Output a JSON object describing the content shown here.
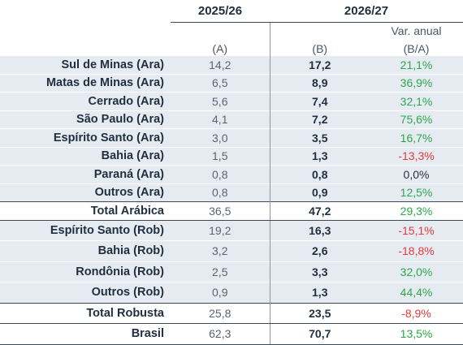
{
  "header": {
    "year_a": "2025/26",
    "year_b": "2026/27",
    "var_label": "Var. anual",
    "col_a": "(A)",
    "col_b": "(B)",
    "col_v": "(B/A)"
  },
  "colors": {
    "positive": "#2aa84a",
    "negative": "#e53935",
    "shade": "#e6ebf2",
    "text": "#1f2f3f"
  },
  "rows": [
    {
      "label": "Sul de Minas (Ara)",
      "a": "14,2",
      "b": "17,2",
      "v": "21,1%",
      "sign": "pos"
    },
    {
      "label": "Matas de Minas (Ara)",
      "a": "6,5",
      "b": "8,9",
      "v": "36,9%",
      "sign": "pos"
    },
    {
      "label": "Cerrado (Ara)",
      "a": "5,6",
      "b": "7,4",
      "v": "32,1%",
      "sign": "pos"
    },
    {
      "label": "São Paulo (Ara)",
      "a": "4,1",
      "b": "7,2",
      "v": "75,6%",
      "sign": "pos"
    },
    {
      "label": "Espírito Santo (Ara)",
      "a": "3,0",
      "b": "3,5",
      "v": "16,7%",
      "sign": "pos"
    },
    {
      "label": "Bahia (Ara)",
      "a": "1,5",
      "b": "1,3",
      "v": "-13,3%",
      "sign": "neg"
    },
    {
      "label": "Paraná (Ara)",
      "a": "0,8",
      "b": "0,8",
      "v": "0,0%",
      "sign": "zero"
    },
    {
      "label": "Outros (Ara)",
      "a": "0,8",
      "b": "0,9",
      "v": "12,5%",
      "sign": "pos"
    },
    {
      "label": "Total Arábica",
      "a": "36,5",
      "b": "47,2",
      "v": "29,3%",
      "sign": "pos",
      "total": true
    },
    {
      "label": "Espírito Santo (Rob)",
      "a": "19,2",
      "b": "16,3",
      "v": "-15,1%",
      "sign": "neg",
      "rob": true
    },
    {
      "label": "Bahia (Rob)",
      "a": "3,2",
      "b": "2,6",
      "v": "-18,8%",
      "sign": "neg",
      "rob": true
    },
    {
      "label": "Rondônia (Rob)",
      "a": "2,5",
      "b": "3,3",
      "v": "32,0%",
      "sign": "pos",
      "rob": true
    },
    {
      "label": "Outros (Rob)",
      "a": "0,9",
      "b": "1,3",
      "v": "44,4%",
      "sign": "pos",
      "rob": true
    },
    {
      "label": "Total Robusta",
      "a": "25,8",
      "b": "23,5",
      "v": "-8,9%",
      "sign": "neg",
      "total": true
    },
    {
      "label": "Brasil",
      "a": "62,3",
      "b": "70,7",
      "v": "13,5%",
      "sign": "pos",
      "total": true
    }
  ]
}
